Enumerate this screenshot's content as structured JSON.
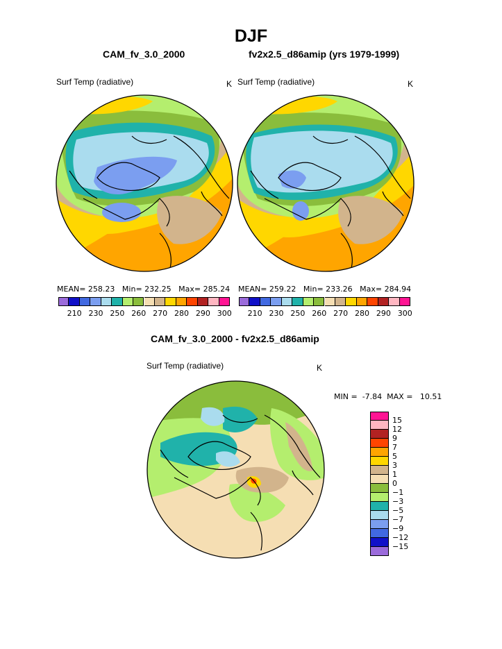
{
  "title": "DJF",
  "panels": [
    {
      "case": "CAM_fv_3.0_2000",
      "variable": "Surf Temp (radiative)",
      "units": "K",
      "mean_label": "MEAN=",
      "mean": "258.23",
      "min_label": "Min=",
      "min": "232.25",
      "max_label": "Max=",
      "max": "285.24"
    },
    {
      "case": "fv2x2.5_d86amip (yrs 1979-1999)",
      "variable": "Surf Temp (radiative)",
      "units": "K",
      "mean_label": "MEAN=",
      "mean": "259.22",
      "min_label": "Min=",
      "min": "233.26",
      "max_label": "Max=",
      "max": "284.94"
    }
  ],
  "colorbar_top": {
    "labels": [
      "210",
      "230",
      "250",
      "260",
      "270",
      "280",
      "290",
      "300"
    ],
    "colors": [
      "#9b6bdb",
      "#1010c8",
      "#4169e1",
      "#7b9ef0",
      "#aadcee",
      "#20b2aa",
      "#b4ee6e",
      "#8abd3c",
      "#f5deb3",
      "#d2b48c",
      "#ffd700",
      "#ffa500",
      "#ff4500",
      "#b22222",
      "#ffb6c1",
      "#ff1493"
    ]
  },
  "difference": {
    "title": "CAM_fv_3.0_2000 - fv2x2.5_d86amip",
    "variable": "Surf Temp (radiative)",
    "units": "K",
    "min_label": "MIN =",
    "min": "-7.84",
    "max_label": "MAX =",
    "max": "10.51",
    "colorbar_labels": [
      "15",
      "12",
      "9",
      "7",
      "5",
      "3",
      "1",
      "0",
      "−1",
      "−3",
      "−5",
      "−7",
      "−9",
      "−12",
      "−15"
    ],
    "colorbar_colors": [
      "#ff1493",
      "#ffb6c1",
      "#b22222",
      "#ff4500",
      "#ffa500",
      "#ffd700",
      "#d2b48c",
      "#f5deb3",
      "#8abd3c",
      "#b4ee6e",
      "#20b2aa",
      "#aadcee",
      "#7b9ef0",
      "#4169e1",
      "#1010c8",
      "#9b6bdb"
    ]
  }
}
